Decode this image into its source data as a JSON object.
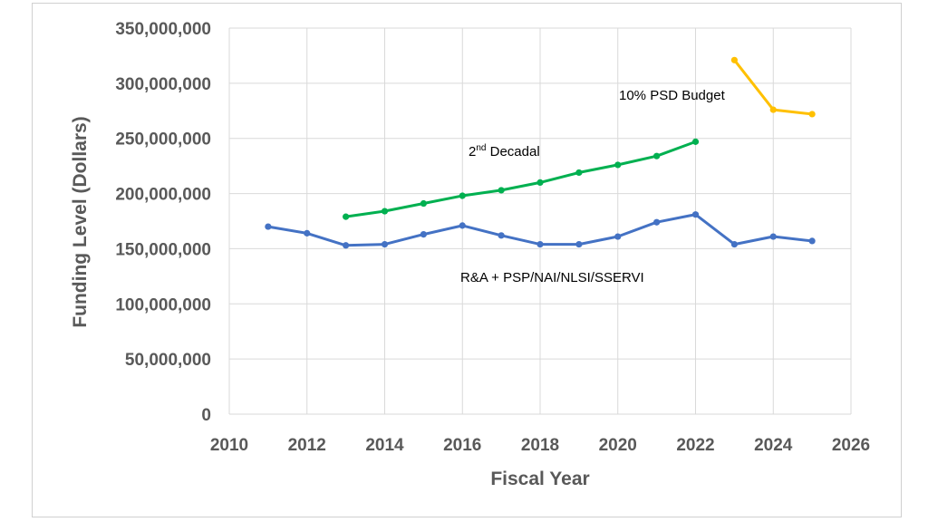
{
  "chart_data": {
    "type": "line",
    "xlabel": "Fiscal Year",
    "ylabel": "Funding Level (Dollars)",
    "xlim": [
      2010,
      2026
    ],
    "ylim": [
      0,
      350000000
    ],
    "x_ticks": [
      "2010",
      "2012",
      "2014",
      "2016",
      "2018",
      "2020",
      "2022",
      "2024",
      "2026"
    ],
    "y_ticks": [
      "0",
      "50,000,000",
      "100,000,000",
      "150,000,000",
      "200,000,000",
      "250,000,000",
      "300,000,000",
      "350,000,000"
    ],
    "grid": true,
    "series": [
      {
        "color": "#4472c4",
        "x": [
          2011,
          2012,
          2013,
          2014,
          2015,
          2016,
          2017,
          2018,
          2019,
          2020,
          2021,
          2022,
          2023,
          2024,
          2025
        ],
        "values": [
          170000000,
          164000000,
          153000000,
          154000000,
          163000000,
          171000000,
          162000000,
          154000000,
          154000000,
          161000000,
          174000000,
          181000000,
          154000000,
          161000000,
          157000000
        ]
      },
      {
        "color": "#00b050",
        "x": [
          2013,
          2014,
          2015,
          2016,
          2017,
          2018,
          2019,
          2020,
          2021,
          2022
        ],
        "values": [
          179000000,
          184000000,
          191000000,
          198000000,
          203000000,
          210000000,
          219000000,
          226000000,
          234000000,
          247000000
        ]
      },
      {
        "color": "#ffc000",
        "x": [
          2023,
          2024,
          2025
        ],
        "values": [
          321000000,
          276000000,
          272000000
        ]
      }
    ],
    "annotations": [
      {
        "text_main": "2",
        "text_sup": "nd",
        "text_rest": " Decadal"
      },
      {
        "text": "10% PSD Budget"
      },
      {
        "text": "R&A + PSP/NAI/NLSI/SSERVI"
      }
    ]
  }
}
